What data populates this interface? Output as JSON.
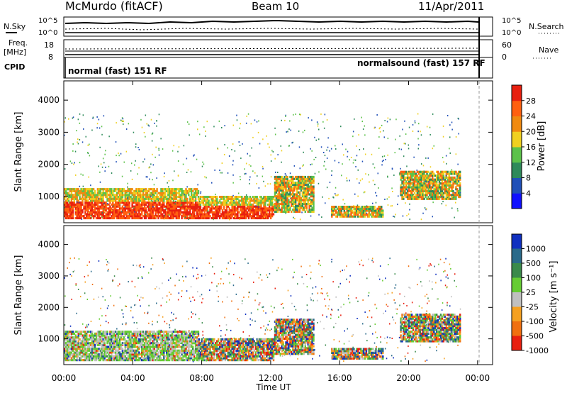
{
  "header": {
    "station": "McMurdo (fitACF)",
    "beam": "Beam 10",
    "date": "11/Apr/2011"
  },
  "strip": {
    "nsky_label": "N.Sky",
    "nsky_ticks": [
      "10^5",
      "10^0"
    ],
    "nsearch_label": "N.Search",
    "nsearch_ticks": [
      "10^5",
      "10^0"
    ],
    "freq_label_1": "Freq.",
    "freq_label_2": "[MHz]",
    "freq_ticks": [
      "18",
      "8"
    ],
    "nave_label": "Nave",
    "nave_ticks": [
      "60",
      "0"
    ],
    "cpid_label": "CPID",
    "cpid_left": "normal (fast) 151 RF",
    "cpid_right": "normalsound (fast) 157 RF"
  },
  "chart_data": [
    {
      "type": "heatmap",
      "name": "power-panel",
      "ylabel": "Slant Range [km]",
      "yticks": [
        "1000",
        "2000",
        "3000",
        "4000"
      ],
      "ylim": [
        180,
        4600
      ],
      "xlim": [
        0,
        24
      ],
      "colorbar_label": "Power [dB]",
      "colorbar_ticks": [
        "4",
        "8",
        "12",
        "16",
        "20",
        "24",
        "28"
      ],
      "colorbar_colors": [
        "#1010ff",
        "#2050b8",
        "#2e8a5a",
        "#5cc24a",
        "#f0d020",
        "#f08a10",
        "#ff6010",
        "#e82010"
      ],
      "echo_bands": [
        {
          "t0": 0.0,
          "t1": 7.8,
          "r0": 300,
          "r1": 1250,
          "level": "high"
        },
        {
          "t0": 7.8,
          "t1": 12.2,
          "r0": 300,
          "r1": 1000,
          "level": "high"
        },
        {
          "t0": 12.2,
          "t1": 14.5,
          "r0": 500,
          "r1": 1600,
          "level": "mid"
        },
        {
          "t0": 15.5,
          "t1": 18.5,
          "r0": 350,
          "r1": 700,
          "level": "mid"
        },
        {
          "t0": 19.5,
          "t1": 23.0,
          "r0": 900,
          "r1": 1800,
          "level": "mid"
        }
      ]
    },
    {
      "type": "heatmap",
      "name": "velocity-panel",
      "ylabel": "Slant Range [km]",
      "yticks": [
        "1000",
        "2000",
        "3000",
        "4000"
      ],
      "ylim": [
        180,
        4600
      ],
      "xlim": [
        0,
        24
      ],
      "colorbar_label": "Velocity [m s⁻¹]",
      "colorbar_ticks": [
        "1000",
        "500",
        "100",
        "25",
        "-25",
        "-100",
        "-500",
        "-1000"
      ],
      "colorbar_colors": [
        "#1030c0",
        "#2a6a8a",
        "#3a8a4a",
        "#66cc33",
        "#c0c0c0",
        "#f5a020",
        "#f07010",
        "#e82010"
      ],
      "xticks": [
        "00:00",
        "04:00",
        "08:00",
        "12:00",
        "16:00",
        "20:00",
        "00:00"
      ],
      "xlabel": "Time UT"
    }
  ]
}
